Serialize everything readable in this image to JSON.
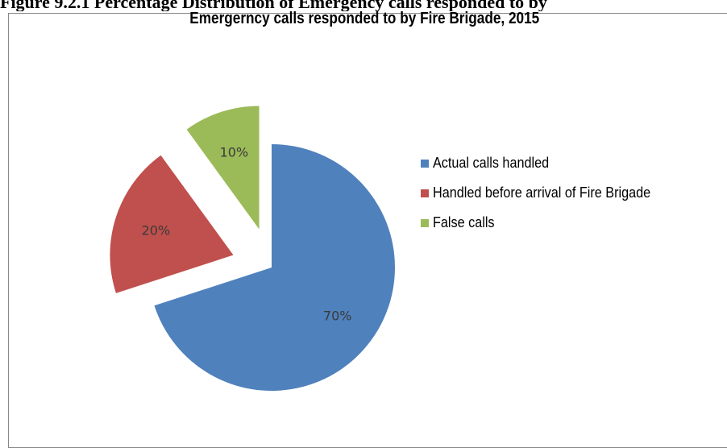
{
  "page_caption": "Figure 9.2.1 Percentage Distribution of Emergency calls responded to by",
  "chart_data": {
    "type": "pie",
    "title": "Emergerncy calls responded to by Fire Brigade, 2015",
    "slices": [
      {
        "label": "Actual calls handled",
        "value": 70,
        "data_label": "70%",
        "color": "#4F81BD",
        "exploded": false
      },
      {
        "label": "Handled before arrival of Fire Brigade",
        "value": 20,
        "data_label": "20%",
        "color": "#C0504D",
        "exploded": true
      },
      {
        "label": "False calls",
        "value": 10,
        "data_label": "10%",
        "color": "#9BBB59",
        "exploded": true
      }
    ],
    "start_angle_deg": 0,
    "direction": "clockwise",
    "legend_position": "right"
  }
}
